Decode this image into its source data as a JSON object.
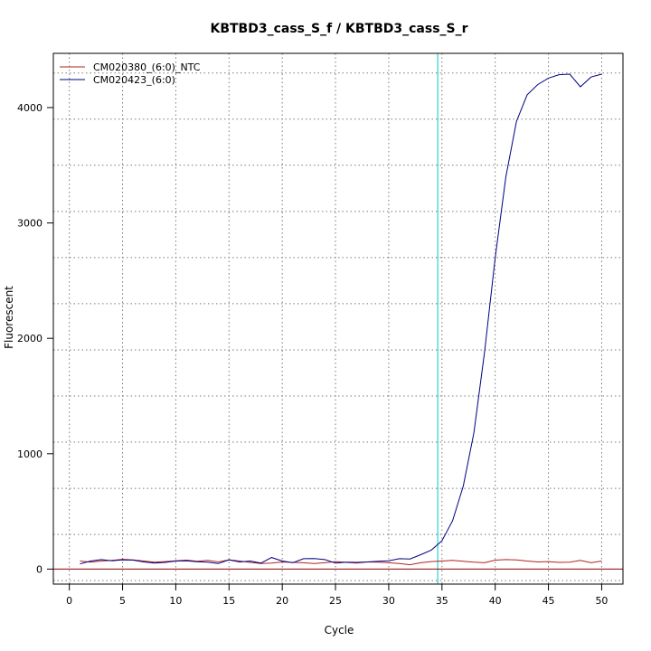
{
  "chart_data": {
    "type": "line",
    "title": "KBTBD3_cass_S_f / KBTBD3_cass_S_r",
    "xlabel": "Cycle",
    "ylabel": "Fluorescent",
    "xlim": [
      -1.5,
      52
    ],
    "ylim": [
      -130,
      4470
    ],
    "xticks": [
      0,
      5,
      10,
      15,
      20,
      25,
      30,
      35,
      40,
      45,
      50
    ],
    "yticks": [
      0,
      1000,
      2000,
      3000,
      4000
    ],
    "x_grid": [
      0,
      5,
      10,
      15,
      20,
      25,
      30,
      35,
      40,
      45,
      50
    ],
    "y_grid": [
      -100,
      300,
      700,
      1100,
      1500,
      1900,
      2300,
      2700,
      3100,
      3500,
      3900,
      4300
    ],
    "grid": true,
    "legend_position": "top-left",
    "threshold_x": 34.6,
    "threshold_color": "#00c8c8",
    "baseline_y": 0,
    "baseline_color": "#8b0000",
    "series": [
      {
        "name": "CM020380_(6:0)_NTC",
        "color": "#b22222",
        "x": [
          1,
          2,
          3,
          4,
          5,
          6,
          7,
          8,
          9,
          10,
          11,
          12,
          13,
          14,
          15,
          16,
          17,
          18,
          19,
          20,
          21,
          22,
          23,
          24,
          25,
          26,
          27,
          28,
          29,
          30,
          31,
          32,
          33,
          34,
          35,
          36,
          37,
          38,
          39,
          40,
          41,
          42,
          43,
          44,
          45,
          46,
          47,
          48,
          49,
          50
        ],
        "y": [
          70,
          60,
          70,
          75,
          85,
          80,
          70,
          60,
          65,
          72,
          78,
          68,
          75,
          62,
          80,
          70,
          58,
          48,
          52,
          62,
          58,
          55,
          48,
          55,
          65,
          58,
          52,
          62,
          60,
          55,
          48,
          38,
          55,
          65,
          70,
          75,
          68,
          60,
          55,
          78,
          82,
          80,
          70,
          62,
          65,
          58,
          60,
          75,
          55,
          70
        ]
      },
      {
        "name": "CM020423_(6:0)",
        "color": "#000080",
        "x": [
          1,
          2,
          3,
          4,
          5,
          6,
          7,
          8,
          9,
          10,
          11,
          12,
          13,
          14,
          15,
          16,
          17,
          18,
          19,
          20,
          21,
          22,
          23,
          24,
          25,
          26,
          27,
          28,
          29,
          30,
          31,
          32,
          33,
          34,
          35,
          36,
          37,
          38,
          39,
          40,
          41,
          42,
          43,
          44,
          45,
          46,
          47,
          48,
          49,
          50
        ],
        "y": [
          45,
          70,
          82,
          72,
          80,
          78,
          62,
          52,
          58,
          70,
          72,
          64,
          60,
          48,
          80,
          62,
          70,
          52,
          100,
          70,
          55,
          90,
          92,
          82,
          52,
          60,
          58,
          62,
          68,
          72,
          90,
          88,
          125,
          165,
          245,
          420,
          720,
          1180,
          1880,
          2700,
          3400,
          3880,
          4110,
          4200,
          4255,
          4285,
          4290,
          4180,
          4265,
          4290
        ]
      }
    ]
  }
}
